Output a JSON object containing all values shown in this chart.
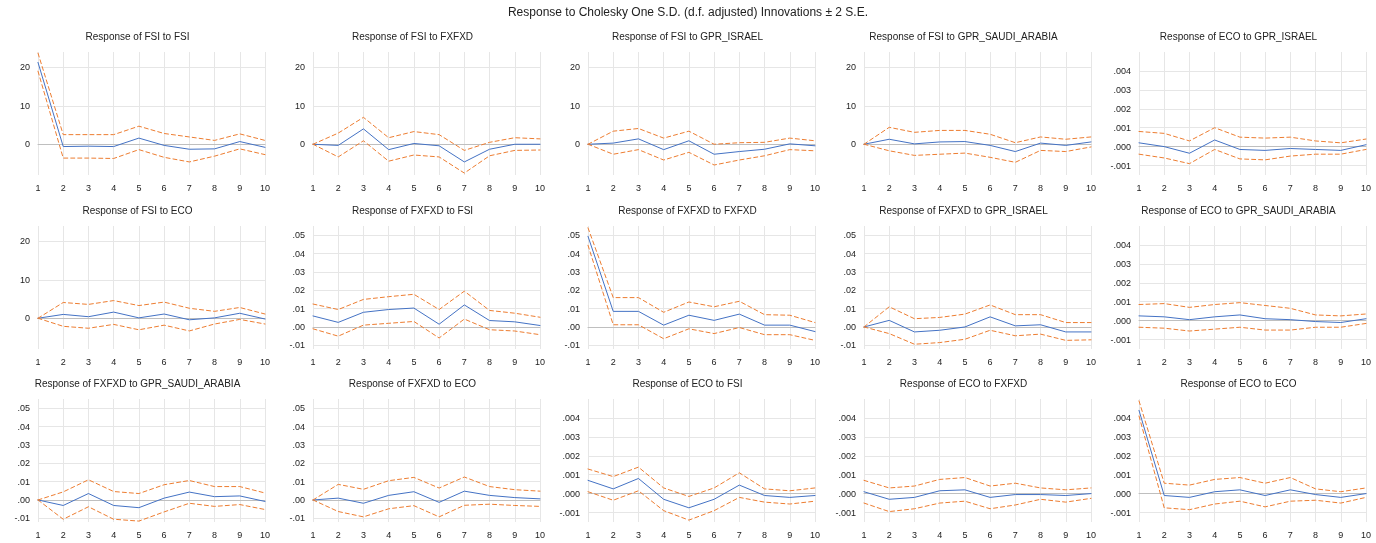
{
  "chart_data": [
    {
      "type": "other",
      "title": "Response to Cholesky One S.D. (d.f. adjusted) Innovations ± 2 S.E."
    },
    {
      "type": "line",
      "title": "Response of FSI to FSI",
      "categories": [
        "1",
        "2",
        "3",
        "4",
        "5",
        "6",
        "7",
        "8",
        "9",
        "10"
      ],
      "ylim": [
        -8,
        24
      ],
      "yticks": [
        0,
        10,
        20
      ],
      "grid": true,
      "marker": "none",
      "series": [
        {
          "color": "#4472c4",
          "line_style": "solid",
          "values": [
            21.3,
            -0.6,
            -0.5,
            -0.6,
            1.6,
            -0.3,
            -1.3,
            -1.2,
            0.7,
            -0.8
          ]
        },
        {
          "color": "#ed7d31",
          "line_style": "dashed",
          "values": [
            23.7,
            2.5,
            2.5,
            2.5,
            4.7,
            2.8,
            1.9,
            1.0,
            2.7,
            1.0
          ]
        },
        {
          "color": "#ed7d31",
          "line_style": "dashed",
          "values": [
            19.0,
            -3.6,
            -3.6,
            -3.7,
            -1.4,
            -3.4,
            -4.6,
            -3.1,
            -1.2,
            -2.7
          ]
        }
      ]
    },
    {
      "type": "line",
      "title": "Response of FSI to FXFXD",
      "categories": [
        "1",
        "2",
        "3",
        "4",
        "5",
        "6",
        "7",
        "8",
        "9",
        "10"
      ],
      "ylim": [
        -8,
        24
      ],
      "yticks": [
        0,
        10,
        20
      ],
      "grid": true,
      "marker": "none",
      "series": [
        {
          "color": "#4472c4",
          "line_style": "solid",
          "values": [
            0,
            -0.3,
            4.0,
            -1.4,
            0.2,
            -0.4,
            -4.6,
            -1.3,
            0,
            0
          ]
        },
        {
          "color": "#ed7d31",
          "line_style": "dashed",
          "values": [
            0,
            2.9,
            7.0,
            1.7,
            3.3,
            2.5,
            -1.6,
            0.5,
            1.7,
            1.4
          ]
        },
        {
          "color": "#ed7d31",
          "line_style": "dashed",
          "values": [
            0,
            -3.3,
            0.9,
            -4.4,
            -2.8,
            -3.3,
            -7.5,
            -3.0,
            -1.6,
            -1.5
          ]
        }
      ]
    },
    {
      "type": "line",
      "title": "Response of FSI to GPR_ISRAEL",
      "categories": [
        "1",
        "2",
        "3",
        "4",
        "5",
        "6",
        "7",
        "8",
        "9",
        "10"
      ],
      "ylim": [
        -8,
        24
      ],
      "yticks": [
        0,
        10,
        20
      ],
      "grid": true,
      "marker": "none",
      "series": [
        {
          "color": "#4472c4",
          "line_style": "solid",
          "values": [
            0,
            0.3,
            1.4,
            -1.4,
            0.9,
            -2.6,
            -1.9,
            -1.3,
            0.1,
            -0.4
          ]
        },
        {
          "color": "#ed7d31",
          "line_style": "dashed",
          "values": [
            0,
            3.4,
            4.1,
            1.6,
            3.4,
            0,
            0.4,
            0.5,
            1.6,
            0.9
          ]
        },
        {
          "color": "#ed7d31",
          "line_style": "dashed",
          "values": [
            0,
            -2.6,
            -1.4,
            -4.1,
            -2.1,
            -5.4,
            -4.1,
            -3.0,
            -1.4,
            -1.7
          ]
        }
      ]
    },
    {
      "type": "line",
      "title": "Response of FSI to GPR_SAUDI_ARABIA",
      "categories": [
        "1",
        "2",
        "3",
        "4",
        "5",
        "6",
        "7",
        "8",
        "9",
        "10"
      ],
      "ylim": [
        -8,
        24
      ],
      "yticks": [
        0,
        10,
        20
      ],
      "grid": true,
      "marker": "none",
      "series": [
        {
          "color": "#4472c4",
          "line_style": "solid",
          "values": [
            0,
            1.3,
            0.1,
            0.6,
            0.7,
            -0.3,
            -1.9,
            0.3,
            -0.3,
            0.6
          ]
        },
        {
          "color": "#ed7d31",
          "line_style": "dashed",
          "values": [
            0,
            4.4,
            3.1,
            3.6,
            3.6,
            2.6,
            0.4,
            1.9,
            1.3,
            1.9
          ]
        },
        {
          "color": "#ed7d31",
          "line_style": "dashed",
          "values": [
            0,
            -1.7,
            -2.9,
            -2.6,
            -2.3,
            -3.4,
            -4.7,
            -1.6,
            -1.9,
            -0.7
          ]
        }
      ]
    },
    {
      "type": "line",
      "title": "Response of ECO to GPR_ISRAEL",
      "categories": [
        "1",
        "2",
        "3",
        "4",
        "5",
        "6",
        "7",
        "8",
        "9",
        "10"
      ],
      "ylim": [
        -0.0015,
        0.005
      ],
      "yticks": [
        {
          "value": -0.001,
          "label": "-.001"
        },
        {
          "value": 0,
          "label": ".000"
        },
        {
          "value": 0.001,
          "label": ".001"
        },
        {
          "value": 0.002,
          "label": ".002"
        },
        {
          "value": 0.003,
          "label": ".003"
        },
        {
          "value": 0.004,
          "label": ".004"
        }
      ],
      "grid": true,
      "marker": "none",
      "series": [
        {
          "color": "#4472c4",
          "line_style": "solid",
          "values": [
            0.0002,
            0.0,
            -0.00035,
            0.00035,
            -0.00015,
            -0.0002,
            -0.0001,
            -0.00015,
            -0.0002,
            0.0001
          ]
        },
        {
          "color": "#ed7d31",
          "line_style": "dashed",
          "values": [
            0.0008,
            0.0007,
            0.0003,
            0.001,
            0.0005,
            0.00045,
            0.0005,
            0.0003,
            0.0002,
            0.0004
          ]
        },
        {
          "color": "#ed7d31",
          "line_style": "dashed",
          "values": [
            -0.0004,
            -0.0006,
            -0.0009,
            -0.00015,
            -0.00065,
            -0.0007,
            -0.0005,
            -0.0004,
            -0.0004,
            -0.00015
          ]
        }
      ]
    },
    {
      "type": "line",
      "title": "Response of FSI to ECO",
      "categories": [
        "1",
        "2",
        "3",
        "4",
        "5",
        "6",
        "7",
        "8",
        "9",
        "10"
      ],
      "ylim": [
        -8,
        24
      ],
      "yticks": [
        0,
        10,
        20
      ],
      "grid": true,
      "marker": "none",
      "series": [
        {
          "color": "#4472c4",
          "line_style": "solid",
          "values": [
            0,
            1.0,
            0.4,
            1.6,
            0.1,
            1.1,
            -0.4,
            0.1,
            1.3,
            -0.2
          ]
        },
        {
          "color": "#ed7d31",
          "line_style": "dashed",
          "values": [
            0,
            4.1,
            3.6,
            4.6,
            3.3,
            4.2,
            2.6,
            1.8,
            2.8,
            1.1
          ]
        },
        {
          "color": "#ed7d31",
          "line_style": "dashed",
          "values": [
            0,
            -2.1,
            -2.6,
            -1.6,
            -3.0,
            -1.8,
            -3.3,
            -1.5,
            -0.3,
            -1.5
          ]
        }
      ]
    },
    {
      "type": "line",
      "title": "Response of FXFXD to FSI",
      "categories": [
        "1",
        "2",
        "3",
        "4",
        "5",
        "6",
        "7",
        "8",
        "9",
        "10"
      ],
      "ylim": [
        -0.012,
        0.055
      ],
      "yticks": [
        {
          "value": -0.01,
          "label": "-.01"
        },
        {
          "value": 0,
          "label": ".00"
        },
        {
          "value": 0.01,
          "label": ".01"
        },
        {
          "value": 0.02,
          "label": ".02"
        },
        {
          "value": 0.03,
          "label": ".03"
        },
        {
          "value": 0.04,
          "label": ".04"
        },
        {
          "value": 0.05,
          "label": ".05"
        }
      ],
      "grid": true,
      "marker": "none",
      "series": [
        {
          "color": "#4472c4",
          "line_style": "solid",
          "values": [
            0.006,
            0.0025,
            0.008,
            0.0095,
            0.0103,
            0.0015,
            0.012,
            0.0035,
            0.0028,
            0.0008
          ]
        },
        {
          "color": "#ed7d31",
          "line_style": "dashed",
          "values": [
            0.0125,
            0.0095,
            0.015,
            0.0165,
            0.0178,
            0.0095,
            0.0195,
            0.009,
            0.0075,
            0.0053
          ]
        },
        {
          "color": "#ed7d31",
          "line_style": "dashed",
          "values": [
            -0.001,
            -0.005,
            0.001,
            0.002,
            0.003,
            -0.006,
            0.0043,
            -0.0015,
            -0.0022,
            -0.0042
          ]
        }
      ]
    },
    {
      "type": "line",
      "title": "Response of FXFXD to FXFXD",
      "categories": [
        "1",
        "2",
        "3",
        "4",
        "5",
        "6",
        "7",
        "8",
        "9",
        "10"
      ],
      "ylim": [
        -0.012,
        0.055
      ],
      "yticks": [
        {
          "value": -0.01,
          "label": "-.01"
        },
        {
          "value": 0,
          "label": ".00"
        },
        {
          "value": 0.01,
          "label": ".01"
        },
        {
          "value": 0.02,
          "label": ".02"
        },
        {
          "value": 0.03,
          "label": ".03"
        },
        {
          "value": 0.04,
          "label": ".04"
        },
        {
          "value": 0.05,
          "label": ".05"
        }
      ],
      "grid": true,
      "marker": "none",
      "series": [
        {
          "color": "#4472c4",
          "line_style": "solid",
          "values": [
            0.0494,
            0.0085,
            0.0085,
            0.001,
            0.0064,
            0.0036,
            0.007,
            0.001,
            0.001,
            -0.0025
          ]
        },
        {
          "color": "#ed7d31",
          "line_style": "dashed",
          "values": [
            0.054,
            0.016,
            0.016,
            0.008,
            0.0136,
            0.011,
            0.014,
            0.0067,
            0.0064,
            0.0024
          ]
        },
        {
          "color": "#ed7d31",
          "line_style": "dashed",
          "values": [
            0.0445,
            0.0012,
            0.0012,
            -0.0064,
            -0.001,
            -0.0036,
            -0.0003,
            -0.0042,
            -0.0042,
            -0.0073
          ]
        }
      ]
    },
    {
      "type": "line",
      "title": "Response of FXFXD to GPR_ISRAEL",
      "categories": [
        "1",
        "2",
        "3",
        "4",
        "5",
        "6",
        "7",
        "8",
        "9",
        "10"
      ],
      "ylim": [
        -0.012,
        0.055
      ],
      "yticks": [
        {
          "value": -0.01,
          "label": "-.01"
        },
        {
          "value": 0,
          "label": ".00"
        },
        {
          "value": 0.01,
          "label": ".01"
        },
        {
          "value": 0.02,
          "label": ".02"
        },
        {
          "value": 0.03,
          "label": ".03"
        },
        {
          "value": 0.04,
          "label": ".04"
        },
        {
          "value": 0.05,
          "label": ".05"
        }
      ],
      "grid": true,
      "marker": "none",
      "series": [
        {
          "color": "#4472c4",
          "line_style": "solid",
          "values": [
            0,
            0.0036,
            -0.0027,
            -0.0018,
            0,
            0.0055,
            0.0006,
            0.0012,
            -0.0027,
            -0.0027
          ]
        },
        {
          "color": "#ed7d31",
          "line_style": "dashed",
          "values": [
            0,
            0.011,
            0.0045,
            0.0052,
            0.007,
            0.012,
            0.0067,
            0.0067,
            0.0024,
            0.0024
          ]
        },
        {
          "color": "#ed7d31",
          "line_style": "dashed",
          "values": [
            0,
            -0.0036,
            -0.0094,
            -0.0085,
            -0.0067,
            -0.0018,
            -0.0048,
            -0.0039,
            -0.0073,
            -0.007
          ]
        }
      ]
    },
    {
      "type": "line",
      "title": "Response of ECO to GPR_SAUDI_ARABIA",
      "categories": [
        "1",
        "2",
        "3",
        "4",
        "5",
        "6",
        "7",
        "8",
        "9",
        "10"
      ],
      "ylim": [
        -0.0015,
        0.005
      ],
      "yticks": [
        {
          "value": -0.001,
          "label": "-.001"
        },
        {
          "value": 0,
          "label": ".000"
        },
        {
          "value": 0.001,
          "label": ".001"
        },
        {
          "value": 0.002,
          "label": ".002"
        },
        {
          "value": 0.003,
          "label": ".003"
        },
        {
          "value": 0.004,
          "label": ".004"
        }
      ],
      "grid": true,
      "marker": "none",
      "series": [
        {
          "color": "#4472c4",
          "line_style": "solid",
          "values": [
            0.00025,
            0.0002,
            5e-05,
            0.0002,
            0.0003,
            0.0001,
            5e-05,
            -5e-05,
            -0.0001,
            0.0001
          ]
        },
        {
          "color": "#ed7d31",
          "line_style": "dashed",
          "values": [
            0.00085,
            0.0009,
            0.0007,
            0.00085,
            0.00095,
            0.0008,
            0.00065,
            0.0003,
            0.00025,
            0.00035
          ]
        },
        {
          "color": "#ed7d31",
          "line_style": "dashed",
          "values": [
            -0.00035,
            -0.0004,
            -0.00055,
            -0.00045,
            -0.00035,
            -0.0005,
            -0.0005,
            -0.00035,
            -0.00035,
            -0.00015
          ]
        }
      ]
    },
    {
      "type": "line",
      "title": "Response of FXFXD to GPR_SAUDI_ARABIA",
      "categories": [
        "1",
        "2",
        "3",
        "4",
        "5",
        "6",
        "7",
        "8",
        "9",
        "10"
      ],
      "ylim": [
        -0.012,
        0.055
      ],
      "yticks": [
        {
          "value": -0.01,
          "label": "-.01"
        },
        {
          "value": 0,
          "label": ".00"
        },
        {
          "value": 0.01,
          "label": ".01"
        },
        {
          "value": 0.02,
          "label": ".02"
        },
        {
          "value": 0.03,
          "label": ".03"
        },
        {
          "value": 0.04,
          "label": ".04"
        },
        {
          "value": 0.05,
          "label": ".05"
        }
      ],
      "grid": true,
      "marker": "none",
      "series": [
        {
          "color": "#4472c4",
          "line_style": "solid",
          "values": [
            0,
            -0.003,
            0.0035,
            -0.003,
            -0.0042,
            0.001,
            0.0043,
            0.0018,
            0.0022,
            -0.0008
          ]
        },
        {
          "color": "#ed7d31",
          "line_style": "dashed",
          "values": [
            0,
            0.0044,
            0.011,
            0.0046,
            0.0035,
            0.0083,
            0.0106,
            0.0073,
            0.0073,
            0.0038
          ]
        },
        {
          "color": "#ed7d31",
          "line_style": "dashed",
          "values": [
            0,
            -0.0105,
            -0.0037,
            -0.0105,
            -0.0115,
            -0.0065,
            -0.0018,
            -0.0035,
            -0.0025,
            -0.0052
          ]
        }
      ]
    },
    {
      "type": "line",
      "title": "Response of FXFXD to ECO",
      "categories": [
        "1",
        "2",
        "3",
        "4",
        "5",
        "6",
        "7",
        "8",
        "9",
        "10"
      ],
      "ylim": [
        -0.012,
        0.055
      ],
      "yticks": [
        {
          "value": -0.01,
          "label": "-.01"
        },
        {
          "value": 0,
          "label": ".00"
        },
        {
          "value": 0.01,
          "label": ".01"
        },
        {
          "value": 0.02,
          "label": ".02"
        },
        {
          "value": 0.03,
          "label": ".03"
        },
        {
          "value": 0.04,
          "label": ".04"
        },
        {
          "value": 0.05,
          "label": ".05"
        }
      ],
      "grid": true,
      "marker": "none",
      "series": [
        {
          "color": "#4472c4",
          "line_style": "solid",
          "values": [
            0,
            0.001,
            -0.0018,
            0.0025,
            0.0045,
            -0.0013,
            0.0048,
            0.0025,
            0.0013,
            0.0006
          ]
        },
        {
          "color": "#ed7d31",
          "line_style": "dashed",
          "values": [
            0,
            0.0085,
            0.0058,
            0.0105,
            0.0123,
            0.0065,
            0.0125,
            0.0073,
            0.0056,
            0.0048
          ]
        },
        {
          "color": "#ed7d31",
          "line_style": "dashed",
          "values": [
            0,
            -0.0063,
            -0.0092,
            -0.0048,
            -0.0031,
            -0.0092,
            -0.0029,
            -0.0023,
            -0.003,
            -0.0035
          ]
        }
      ]
    },
    {
      "type": "line",
      "title": "Response of ECO to FSI",
      "categories": [
        "1",
        "2",
        "3",
        "4",
        "5",
        "6",
        "7",
        "8",
        "9",
        "10"
      ],
      "ylim": [
        -0.0015,
        0.005
      ],
      "yticks": [
        {
          "value": -0.001,
          "label": "-.001"
        },
        {
          "value": 0,
          "label": ".000"
        },
        {
          "value": 0.001,
          "label": ".001"
        },
        {
          "value": 0.002,
          "label": ".002"
        },
        {
          "value": 0.003,
          "label": ".003"
        },
        {
          "value": 0.004,
          "label": ".004"
        }
      ],
      "grid": true,
      "marker": "none",
      "series": [
        {
          "color": "#4472c4",
          "line_style": "solid",
          "values": [
            0.0007,
            0.00025,
            0.0008,
            -0.0003,
            -0.00075,
            -0.0003,
            0.00045,
            -0.0001,
            -0.0002,
            -0.0001
          ]
        },
        {
          "color": "#ed7d31",
          "line_style": "dashed",
          "values": [
            0.0013,
            0.0009,
            0.0014,
            0.0003,
            -0.00015,
            0.0003,
            0.0011,
            0.00025,
            0.00015,
            0.0003
          ]
        },
        {
          "color": "#ed7d31",
          "line_style": "dashed",
          "values": [
            0.0001,
            -0.00035,
            0.00015,
            -0.0009,
            -0.0014,
            -0.0009,
            -0.0002,
            -0.00045,
            -0.00055,
            -0.0004
          ]
        }
      ]
    },
    {
      "type": "line",
      "title": "Response of ECO to FXFXD",
      "categories": [
        "1",
        "2",
        "3",
        "4",
        "5",
        "6",
        "7",
        "8",
        "9",
        "10"
      ],
      "ylim": [
        -0.0015,
        0.005
      ],
      "yticks": [
        {
          "value": -0.001,
          "label": "-.001"
        },
        {
          "value": 0,
          "label": ".000"
        },
        {
          "value": 0.001,
          "label": ".001"
        },
        {
          "value": 0.002,
          "label": ".002"
        },
        {
          "value": 0.003,
          "label": ".003"
        },
        {
          "value": 0.004,
          "label": ".004"
        }
      ],
      "grid": true,
      "marker": "none",
      "series": [
        {
          "color": "#4472c4",
          "line_style": "solid",
          "values": [
            0.0001,
            -0.0003,
            -0.0002,
            0.00015,
            0.0002,
            -0.0002,
            -5e-05,
            -5e-05,
            -0.0001,
            0
          ]
        },
        {
          "color": "#ed7d31",
          "line_style": "dashed",
          "values": [
            0.0007,
            0.0003,
            0.0004,
            0.00075,
            0.00085,
            0.0004,
            0.00055,
            0.0003,
            0.0002,
            0.0003
          ]
        },
        {
          "color": "#ed7d31",
          "line_style": "dashed",
          "values": [
            -0.0005,
            -0.00095,
            -0.0008,
            -0.0005,
            -0.0004,
            -0.0008,
            -0.0006,
            -0.0003,
            -0.00045,
            -0.00025
          ]
        }
      ]
    },
    {
      "type": "line",
      "title": "Response of ECO to ECO",
      "categories": [
        "1",
        "2",
        "3",
        "4",
        "5",
        "6",
        "7",
        "8",
        "9",
        "10"
      ],
      "ylim": [
        -0.0015,
        0.005
      ],
      "yticks": [
        {
          "value": -0.001,
          "label": "-.001"
        },
        {
          "value": 0,
          "label": ".000"
        },
        {
          "value": 0.001,
          "label": ".001"
        },
        {
          "value": 0.002,
          "label": ".002"
        },
        {
          "value": 0.003,
          "label": ".003"
        },
        {
          "value": 0.004,
          "label": ".004"
        }
      ],
      "grid": true,
      "marker": "none",
      "series": [
        {
          "color": "#4472c4",
          "line_style": "solid",
          "values": [
            0.0044,
            -0.0001,
            -0.0002,
            0.0001,
            0.0002,
            -0.0001,
            0.0002,
            -5e-05,
            -0.0002,
            0
          ]
        },
        {
          "color": "#ed7d31",
          "line_style": "dashed",
          "values": [
            0.0049,
            0.00055,
            0.00045,
            0.00075,
            0.00085,
            0.00055,
            0.00085,
            0.00025,
            0.0001,
            0.0003
          ]
        },
        {
          "color": "#ed7d31",
          "line_style": "dashed",
          "values": [
            0.0041,
            -0.00075,
            -0.00085,
            -0.00055,
            -0.0004,
            -0.0007,
            -0.0004,
            -0.00035,
            -0.0005,
            -0.0002
          ]
        }
      ]
    }
  ]
}
